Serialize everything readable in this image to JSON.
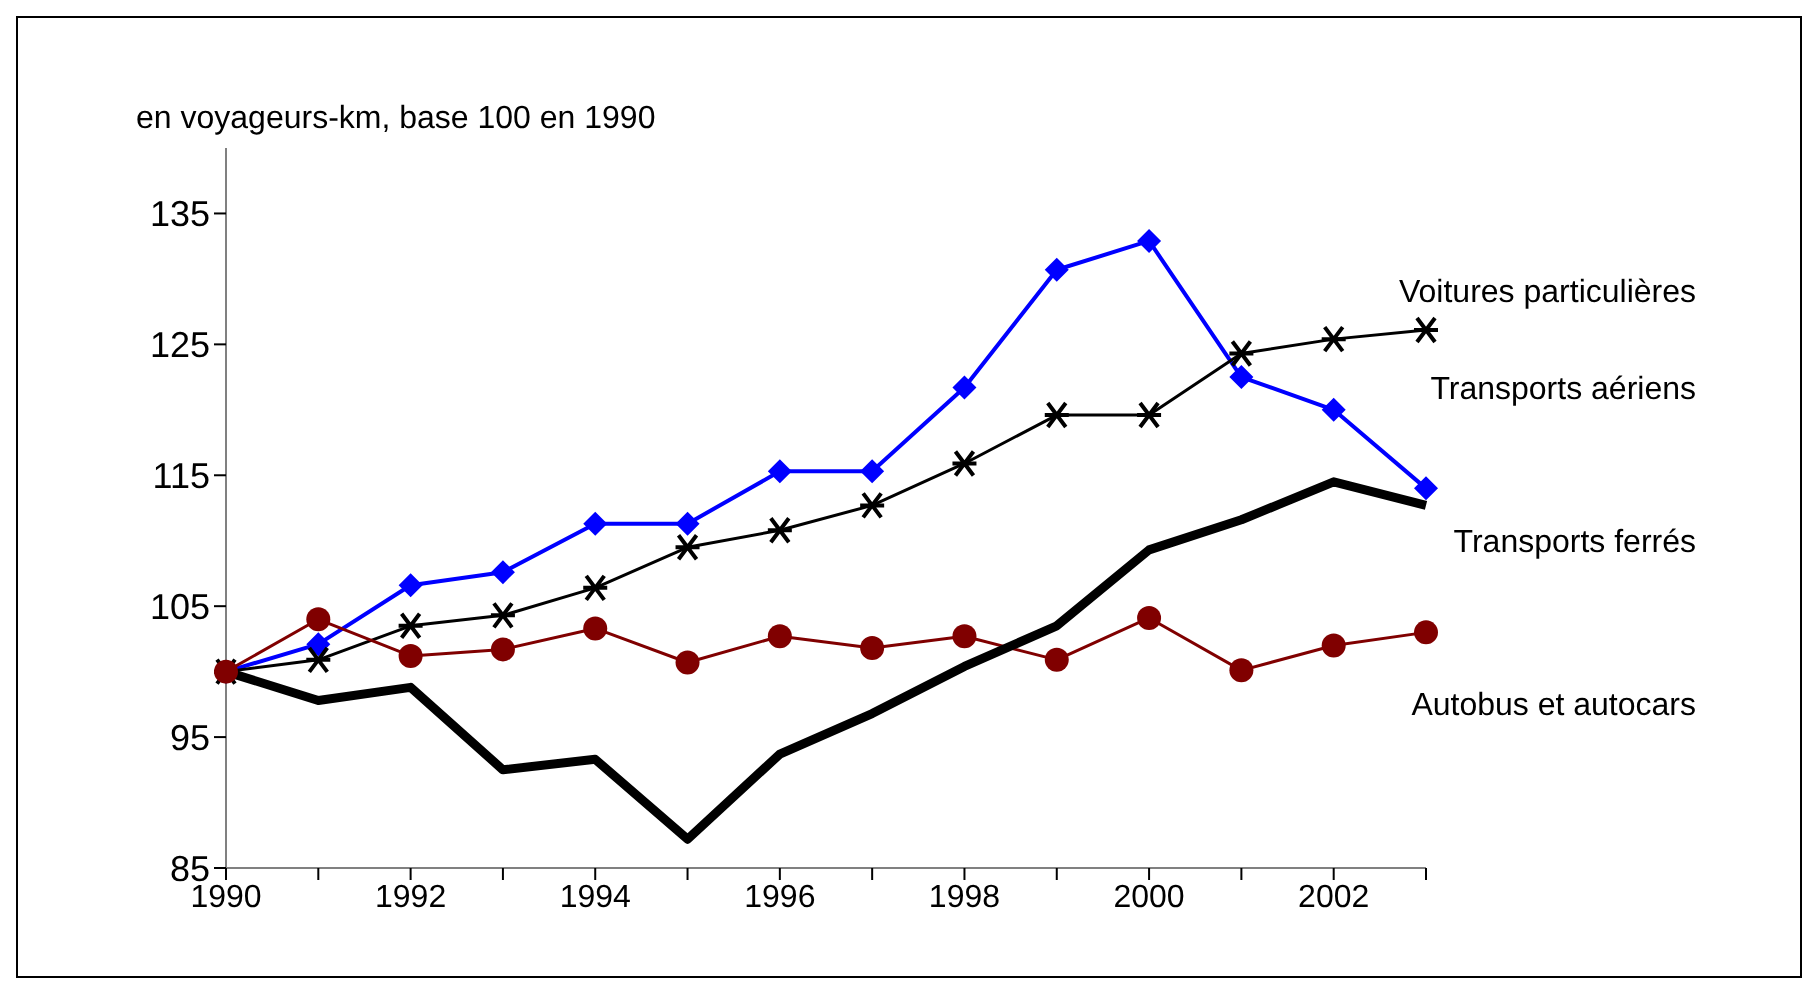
{
  "chart_data": {
    "type": "line",
    "ylabel": "en voyageurs-km, base 100 en 1990",
    "x": [
      1990,
      1991,
      1992,
      1993,
      1994,
      1995,
      1996,
      1997,
      1998,
      1999,
      2000,
      2001,
      2002,
      2003
    ],
    "series": [
      {
        "name": "Transports aériens",
        "color": "#0000ff",
        "marker": "diamond",
        "values": [
          100,
          102.1,
          106.6,
          107.6,
          111.3,
          111.3,
          115.3,
          115.3,
          121.7,
          130.7,
          132.9,
          122.5,
          120,
          114
        ]
      },
      {
        "name": "Voitures particulières",
        "color": "#000000",
        "marker": "cross",
        "values": [
          100,
          100.9,
          103.5,
          104.3,
          106.4,
          109.5,
          110.8,
          112.7,
          115.9,
          119.6,
          119.6,
          124.3,
          125.4,
          126.1
        ]
      },
      {
        "name": "Autobus et autocars",
        "color": "#800000",
        "marker": "circle",
        "values": [
          100,
          104,
          101.2,
          101.7,
          103.3,
          100.7,
          102.7,
          101.8,
          102.7,
          100.9,
          104.1,
          100.1,
          102,
          103
        ]
      },
      {
        "name": "Transports ferrés",
        "color": "#000000",
        "marker": "none",
        "values": [
          100,
          97.8,
          98.8,
          92.5,
          93.3,
          87.2,
          93.7,
          96.8,
          100.4,
          103.5,
          109.3,
          111.6,
          114.5,
          112.7
        ]
      }
    ],
    "xlim": [
      1990,
      2003
    ],
    "xticks": [
      1990,
      {
        "value": 1991,
        "label": null
      },
      1992,
      {
        "value": 1993,
        "label": null
      },
      1994,
      {
        "value": 1995,
        "label": null
      },
      1996,
      {
        "value": 1997,
        "label": null
      },
      1998,
      {
        "value": 1999,
        "label": null
      },
      2000,
      {
        "value": 2001,
        "label": null
      },
      2002,
      {
        "value": 2003,
        "label": null
      }
    ],
    "ylim": [
      85,
      140
    ],
    "yticks": [
      85,
      95,
      105,
      115,
      125,
      135
    ],
    "grid": false,
    "legend": false,
    "line_style": "solid"
  }
}
